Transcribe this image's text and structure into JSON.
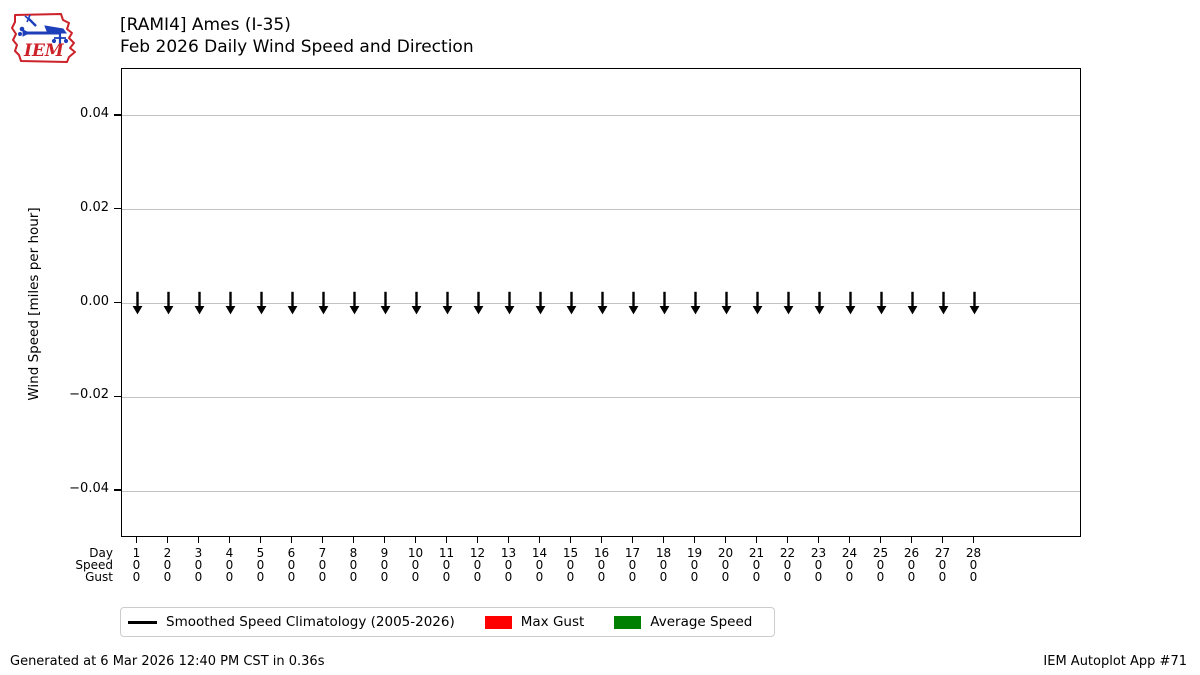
{
  "header": {
    "title_line1": "[RAMI4] Ames (I-35)",
    "title_line2": "Feb 2026 Daily Wind Speed and Direction",
    "logo_text": "IEM"
  },
  "chart_data": {
    "type": "line",
    "title": "[RAMI4] Ames (I-35) — Feb 2026 Daily Wind Speed and Direction",
    "xlabel": "Day",
    "ylabel": "Wind Speed [miles per hour]",
    "ylim": [
      -0.05,
      0.05
    ],
    "yticks": [
      0.04,
      0.02,
      0.0,
      -0.02,
      -0.04
    ],
    "ytick_labels": [
      "0.04",
      "0.02",
      "0.00",
      "−0.02",
      "−0.04"
    ],
    "grid": true,
    "legend_position": "bottom",
    "categories": [
      1,
      2,
      3,
      4,
      5,
      6,
      7,
      8,
      9,
      10,
      11,
      12,
      13,
      14,
      15,
      16,
      17,
      18,
      19,
      20,
      21,
      22,
      23,
      24,
      25,
      26,
      27,
      28
    ],
    "series": [
      {
        "name": "Average Speed",
        "color": "#008000",
        "values": [
          0,
          0,
          0,
          0,
          0,
          0,
          0,
          0,
          0,
          0,
          0,
          0,
          0,
          0,
          0,
          0,
          0,
          0,
          0,
          0,
          0,
          0,
          0,
          0,
          0,
          0,
          0,
          0
        ]
      },
      {
        "name": "Max Gust",
        "color": "#ff0000",
        "values": [
          0,
          0,
          0,
          0,
          0,
          0,
          0,
          0,
          0,
          0,
          0,
          0,
          0,
          0,
          0,
          0,
          0,
          0,
          0,
          0,
          0,
          0,
          0,
          0,
          0,
          0,
          0,
          0
        ]
      }
    ],
    "wind_direction_arrows": {
      "symbol": "↓",
      "placement_y": 0.0,
      "days": [
        1,
        2,
        3,
        4,
        5,
        6,
        7,
        8,
        9,
        10,
        11,
        12,
        13,
        14,
        15,
        16,
        17,
        18,
        19,
        20,
        21,
        22,
        23,
        24,
        25,
        26,
        27,
        28
      ]
    }
  },
  "table": {
    "rows": [
      {
        "label": "Day",
        "values": [
          "1",
          "2",
          "3",
          "4",
          "5",
          "6",
          "7",
          "8",
          "9",
          "10",
          "11",
          "12",
          "13",
          "14",
          "15",
          "16",
          "17",
          "18",
          "19",
          "20",
          "21",
          "22",
          "23",
          "24",
          "25",
          "26",
          "27",
          "28"
        ]
      },
      {
        "label": "Speed",
        "values": [
          "0",
          "0",
          "0",
          "0",
          "0",
          "0",
          "0",
          "0",
          "0",
          "0",
          "0",
          "0",
          "0",
          "0",
          "0",
          "0",
          "0",
          "0",
          "0",
          "0",
          "0",
          "0",
          "0",
          "0",
          "0",
          "0",
          "0",
          "0"
        ]
      },
      {
        "label": "Gust",
        "values": [
          "0",
          "0",
          "0",
          "0",
          "0",
          "0",
          "0",
          "0",
          "0",
          "0",
          "0",
          "0",
          "0",
          "0",
          "0",
          "0",
          "0",
          "0",
          "0",
          "0",
          "0",
          "0",
          "0",
          "0",
          "0",
          "0",
          "0",
          "0"
        ]
      }
    ]
  },
  "legend": {
    "items": [
      {
        "label": "Smoothed Speed Climatology (2005-2026)",
        "swatch": "line",
        "color": "#000000"
      },
      {
        "label": "Max Gust",
        "swatch": "rect",
        "color": "#ff0000"
      },
      {
        "label": "Average Speed",
        "swatch": "rect",
        "color": "#008000"
      }
    ]
  },
  "footer": {
    "left": "Generated at 6 Mar 2026 12:40 PM CST in 0.36s",
    "right": "IEM Autoplot App #71"
  },
  "colors": {
    "grid": "#c3c3c3",
    "max_gust": "#ff0000",
    "average_speed": "#008000",
    "logo_red": "#cc2229",
    "logo_blue": "#1d3fba"
  }
}
